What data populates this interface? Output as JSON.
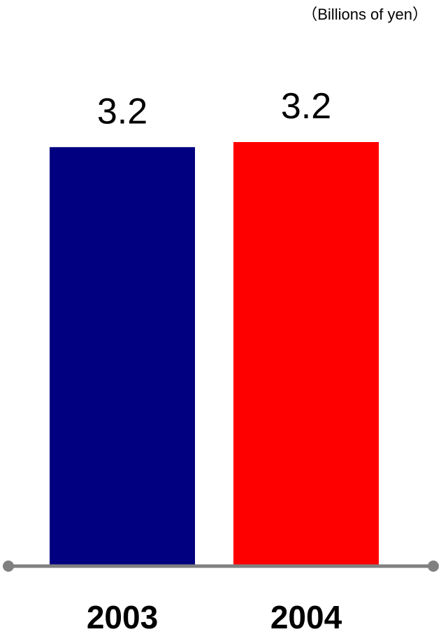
{
  "chart_data": {
    "type": "bar",
    "unit_label": "（Billions of yen）",
    "categories": [
      "2003",
      "2004"
    ],
    "values": [
      3.2,
      3.2
    ],
    "value_labels": [
      "3.2",
      "3.2"
    ],
    "bar_colors": [
      "#000080",
      "#ff0000"
    ],
    "axis_color": "#808080",
    "heights_relative": [
      0.988,
      1.0
    ],
    "ylim": [
      0,
      3.24
    ],
    "grid": false,
    "legend": "none"
  }
}
